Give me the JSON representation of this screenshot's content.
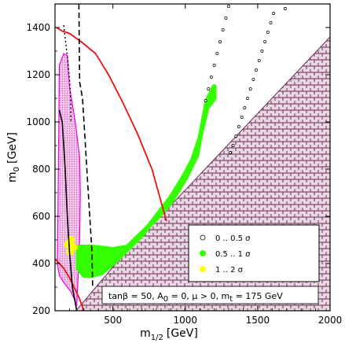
{
  "chart_data": {
    "type": "scatter",
    "xlabel": "m",
    "xlabel_sub": "1/2",
    "xlabel_unit": "[GeV]",
    "ylabel": "m",
    "ylabel_sub": "0",
    "ylabel_unit": "[GeV]",
    "xlim": [
      100,
      2000
    ],
    "ylim": [
      200,
      1500
    ],
    "x_ticks": [
      500,
      1000,
      1500,
      2000
    ],
    "y_ticks": [
      200,
      400,
      600,
      800,
      1000,
      1200,
      1400
    ],
    "colors": {
      "green": "#33ff00",
      "yellow": "#ffff00",
      "red": "#ee1111",
      "magenta": "#ee00ee",
      "hatch": "#663355",
      "hatch_bg": "#ead6e2",
      "pink": "#ee99dd"
    },
    "legend": {
      "entries": [
        "0 .. 0.5 σ",
        "0.5 .. 1 σ",
        "1 .. 2 σ"
      ],
      "colors": [
        "#ffffff",
        "#33ff00",
        "#ffff00"
      ],
      "placement": "lower-right"
    },
    "annotation": {
      "prefix": "tanβ = 50, A",
      "sub0": "0",
      "mid1": " = 0, μ > 0, m",
      "subt": "t",
      "suffix": " = 175 GeV"
    },
    "excluded_region": [
      [
        100,
        200
      ],
      [
        1950,
        200
      ],
      [
        2000,
        200
      ],
      [
        2000,
        1360
      ],
      [
        1290,
        900
      ],
      [
        520,
        400
      ],
      [
        245,
        200
      ]
    ],
    "red_curve": [
      [
        110,
        1400
      ],
      [
        150,
        1385
      ],
      [
        200,
        1375
      ],
      [
        280,
        1340
      ],
      [
        380,
        1290
      ],
      [
        470,
        1200
      ],
      [
        570,
        1080
      ],
      [
        670,
        950
      ],
      [
        770,
        800
      ],
      [
        870,
        580
      ]
    ],
    "red_curve_low": [
      [
        100,
        420
      ],
      [
        160,
        380
      ],
      [
        200,
        340
      ],
      [
        240,
        290
      ],
      [
        270,
        250
      ],
      [
        300,
        200
      ]
    ],
    "black_solid": [
      [
        130,
        1050
      ],
      [
        150,
        1000
      ],
      [
        160,
        900
      ],
      [
        170,
        800
      ],
      [
        185,
        600
      ],
      [
        200,
        450
      ],
      [
        220,
        300
      ],
      [
        250,
        200
      ]
    ],
    "black_dashed": [
      [
        265,
        1500
      ],
      [
        270,
        1170
      ],
      [
        290,
        1100
      ],
      [
        305,
        950
      ],
      [
        320,
        800
      ],
      [
        340,
        600
      ],
      [
        355,
        450
      ],
      [
        360,
        300
      ]
    ],
    "black_dotted": [
      [
        160,
        1410
      ],
      [
        190,
        1250
      ],
      [
        205,
        1150
      ],
      [
        210,
        1000
      ]
    ],
    "magenta_band": [
      [
        130,
        1240
      ],
      [
        160,
        1290
      ],
      [
        185,
        1280
      ],
      [
        200,
        1150
      ],
      [
        240,
        1000
      ],
      [
        270,
        850
      ],
      [
        275,
        700
      ],
      [
        270,
        500
      ],
      [
        260,
        350
      ],
      [
        250,
        220
      ],
      [
        240,
        240
      ],
      [
        210,
        280
      ],
      [
        185,
        300
      ],
      [
        160,
        320
      ],
      [
        130,
        350
      ],
      [
        115,
        400
      ],
      [
        120,
        600
      ],
      [
        125,
        900
      ]
    ],
    "green_band_upper": [
      [
        260,
        470
      ],
      [
        360,
        470
      ],
      [
        500,
        460
      ],
      [
        600,
        470
      ],
      [
        700,
        530
      ],
      [
        800,
        590
      ],
      [
        900,
        660
      ],
      [
        1000,
        760
      ],
      [
        1080,
        860
      ],
      [
        1110,
        960
      ],
      [
        1150,
        1090
      ],
      [
        1200,
        1150
      ]
    ],
    "green_band_lower": [
      [
        1200,
        1100
      ],
      [
        1150,
        1060
      ],
      [
        1100,
        930
      ],
      [
        1050,
        840
      ],
      [
        1000,
        780
      ],
      [
        900,
        680
      ],
      [
        800,
        600
      ],
      [
        700,
        520
      ],
      [
        600,
        460
      ],
      [
        500,
        400
      ],
      [
        420,
        360
      ],
      [
        360,
        350
      ],
      [
        300,
        350
      ],
      [
        260,
        380
      ]
    ],
    "yellow_points": [
      [
        190,
        480
      ],
      [
        210,
        500
      ],
      [
        205,
        450
      ],
      [
        230,
        470
      ]
    ],
    "black_open_points": [
      [
        1140,
        1090
      ],
      [
        1160,
        1140
      ],
      [
        1180,
        1190
      ],
      [
        1200,
        1240
      ],
      [
        1220,
        1290
      ],
      [
        1240,
        1340
      ],
      [
        1260,
        1390
      ],
      [
        1280,
        1440
      ],
      [
        1300,
        1490
      ],
      [
        1310,
        870
      ],
      [
        1330,
        900
      ],
      [
        1350,
        940
      ],
      [
        1370,
        980
      ],
      [
        1390,
        1020
      ],
      [
        1410,
        1060
      ],
      [
        1430,
        1100
      ],
      [
        1450,
        1140
      ],
      [
        1470,
        1180
      ],
      [
        1490,
        1220
      ],
      [
        1510,
        1260
      ],
      [
        1530,
        1300
      ],
      [
        1550,
        1340
      ],
      [
        1570,
        1380
      ],
      [
        1590,
        1420
      ],
      [
        1610,
        1460
      ],
      [
        1690,
        1480
      ]
    ]
  }
}
